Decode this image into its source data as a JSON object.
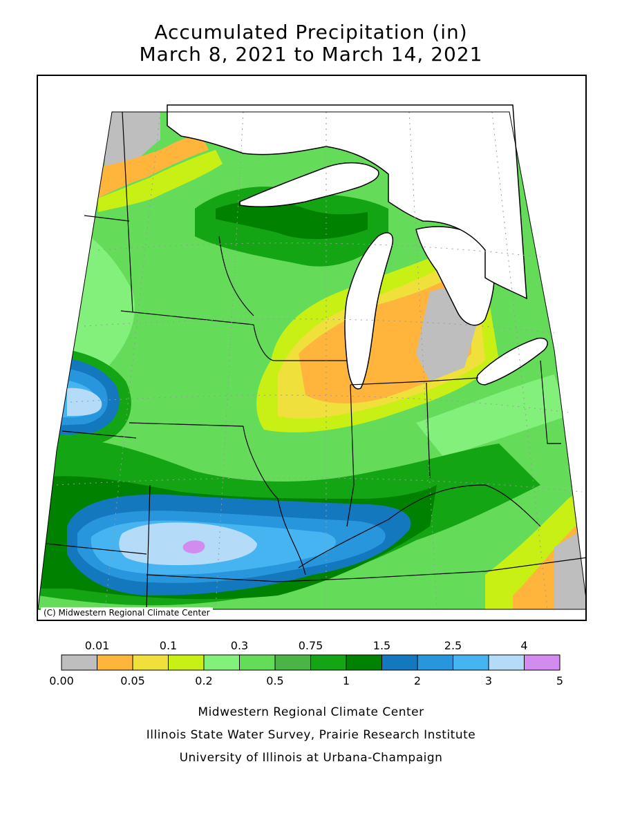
{
  "title": {
    "line1": "Accumulated Precipitation (in)",
    "line2": "March 8, 2021 to March 14, 2021"
  },
  "map": {
    "copyright": "(C) Midwestern Regional Climate Center",
    "region": "Upper Midwest / Great Lakes"
  },
  "legend": {
    "colors": [
      "#bebebe",
      "#ffb43c",
      "#f0e03c",
      "#c8f014",
      "#82f07a",
      "#64dc5a",
      "#4bb446",
      "#14a514",
      "#008200",
      "#1478be",
      "#2896dc",
      "#46b4f0",
      "#b4dcf8",
      "#d28cf0"
    ],
    "top_labels": [
      "0.01",
      "0.1",
      "0.3",
      "0.75",
      "1.5",
      "2.5",
      "4"
    ],
    "bottom_labels": [
      "0.00",
      "0.05",
      "0.2",
      "0.5",
      "1",
      "2",
      "3",
      "5"
    ]
  },
  "credits": {
    "line1": "Midwestern Regional Climate Center",
    "line2": "Illinois State Water Survey, Prairie Research Institute",
    "line3": "University of Illinois at Urbana-Champaign"
  }
}
